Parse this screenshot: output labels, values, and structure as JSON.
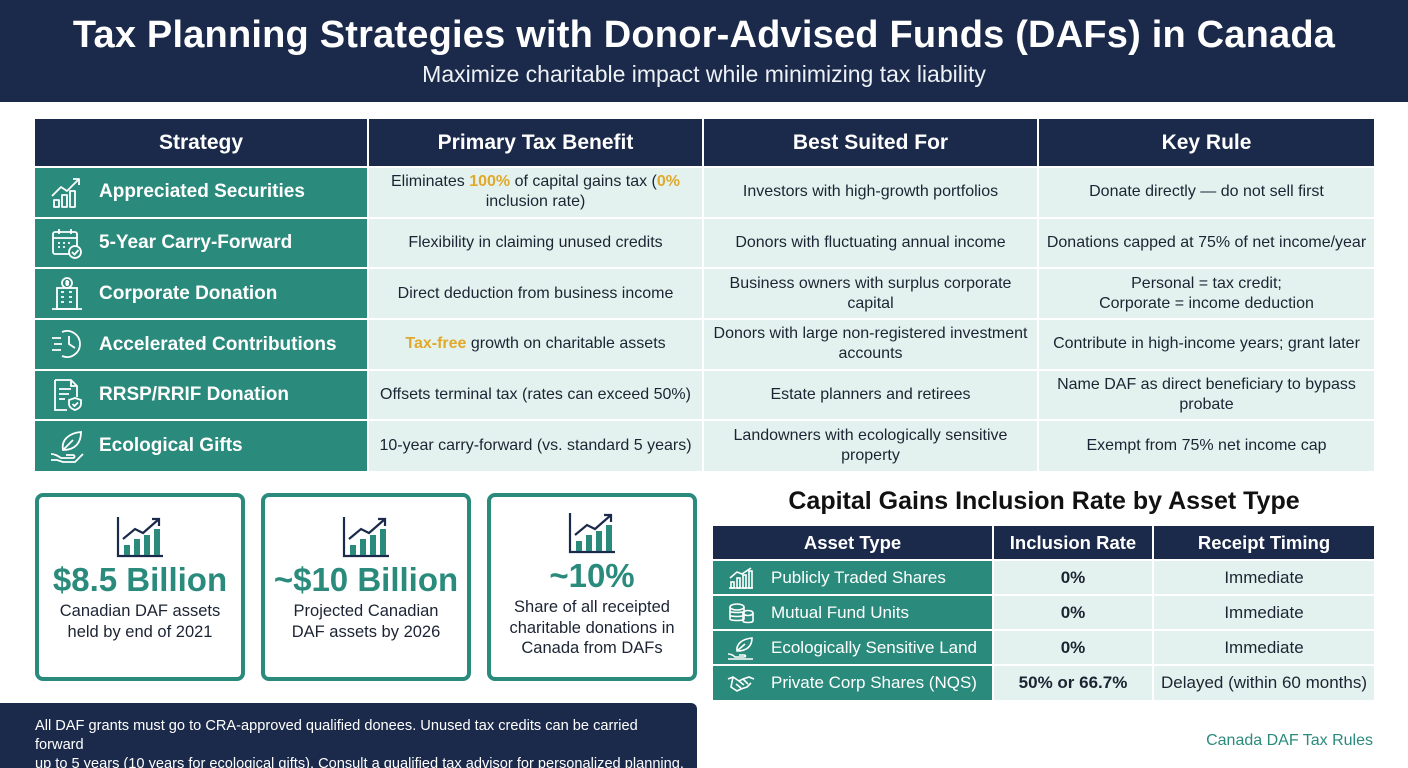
{
  "header": {
    "title": "Tax Planning Strategies with Donor-Advised Funds (DAFs) in Canada",
    "subtitle": "Maximize charitable impact while minimizing tax liability"
  },
  "strategy_table": {
    "columns": [
      "Strategy",
      "Primary Tax Benefit",
      "Best Suited For",
      "Key Rule"
    ],
    "rows": [
      {
        "icon": "trending-chart-icon",
        "strategy": "Appreciated Securities",
        "benefit_pre": "Eliminates ",
        "benefit_hl1": "100%",
        "benefit_mid": " of capital gains tax (",
        "benefit_hl2": "0%",
        "benefit_post": " inclusion rate)",
        "best_for": "Investors with high-growth portfolios",
        "rule": "Donate directly — do not sell first"
      },
      {
        "icon": "calendar-check-icon",
        "strategy": "5-Year Carry-Forward",
        "benefit": "Flexibility in claiming unused credits",
        "best_for": "Donors with fluctuating annual income",
        "rule": "Donations capped at 75% of net income/year"
      },
      {
        "icon": "building-dollar-icon",
        "strategy": "Corporate Donation",
        "benefit": "Direct deduction from business income",
        "best_for": "Business owners with surplus corporate capital",
        "rule_line1": "Personal = tax credit;",
        "rule_line2": "Corporate = income deduction"
      },
      {
        "icon": "clock-speed-icon",
        "strategy": "Accelerated Contributions",
        "benefit_hl": "Tax-free",
        "benefit_post": " growth on charitable assets",
        "best_for": "Donors with large non-registered investment accounts",
        "rule": "Contribute in high-income years; grant later"
      },
      {
        "icon": "document-shield-icon",
        "strategy": "RRSP/RRIF Donation",
        "benefit": "Offsets terminal tax (rates can exceed 50%)",
        "best_for": "Estate planners and retirees",
        "rule": "Name DAF as direct beneficiary to bypass probate"
      },
      {
        "icon": "leaf-hand-icon",
        "strategy": "Ecological Gifts",
        "benefit": "10-year carry-forward (vs. standard 5 years)",
        "best_for": "Landowners with ecologically sensitive property",
        "rule": "Exempt from 75% net income cap"
      }
    ]
  },
  "stats": [
    {
      "value": "$8.5 Billion",
      "line1": "Canadian DAF assets",
      "line2": "held by end of 2021",
      "line3": ""
    },
    {
      "value": "~$10 Billion",
      "line1": "Projected Canadian",
      "line2": "DAF assets by 2026",
      "line3": ""
    },
    {
      "value": "~10%",
      "line1": "Share of all receipted",
      "line2": "charitable donations in",
      "line3": "Canada from DAFs"
    }
  ],
  "capital_gains": {
    "title": "Capital Gains Inclusion Rate by Asset Type",
    "columns": [
      "Asset Type",
      "Inclusion Rate",
      "Receipt Timing"
    ],
    "rows": [
      {
        "icon": "bar-chart-icon",
        "asset": "Publicly Traded Shares",
        "rate": "0%",
        "timing": "Immediate"
      },
      {
        "icon": "coin-stack-icon",
        "asset": "Mutual Fund Units",
        "rate": "0%",
        "timing": "Immediate"
      },
      {
        "icon": "leaf-hand-icon",
        "asset": "Ecologically Sensitive Land",
        "rate": "0%",
        "timing": "Immediate"
      },
      {
        "icon": "handshake-icon",
        "asset": "Private Corp Shares (NQS)",
        "rate": "50% or 66.7%",
        "timing": "Delayed (within 60 months)"
      }
    ]
  },
  "footer": {
    "note_line1": "All DAF grants must go to CRA-approved qualified donees. Unused tax credits can be carried forward",
    "note_line2": "up to 5 years (10 years for ecological gifts). Consult a qualified tax advisor for personalized planning.",
    "credit": "Canada DAF Tax Rules"
  },
  "colors": {
    "navy": "#1b2a4a",
    "teal": "#2a8a7c",
    "mint": "#e4f2ef",
    "gold": "#e0a92a"
  }
}
